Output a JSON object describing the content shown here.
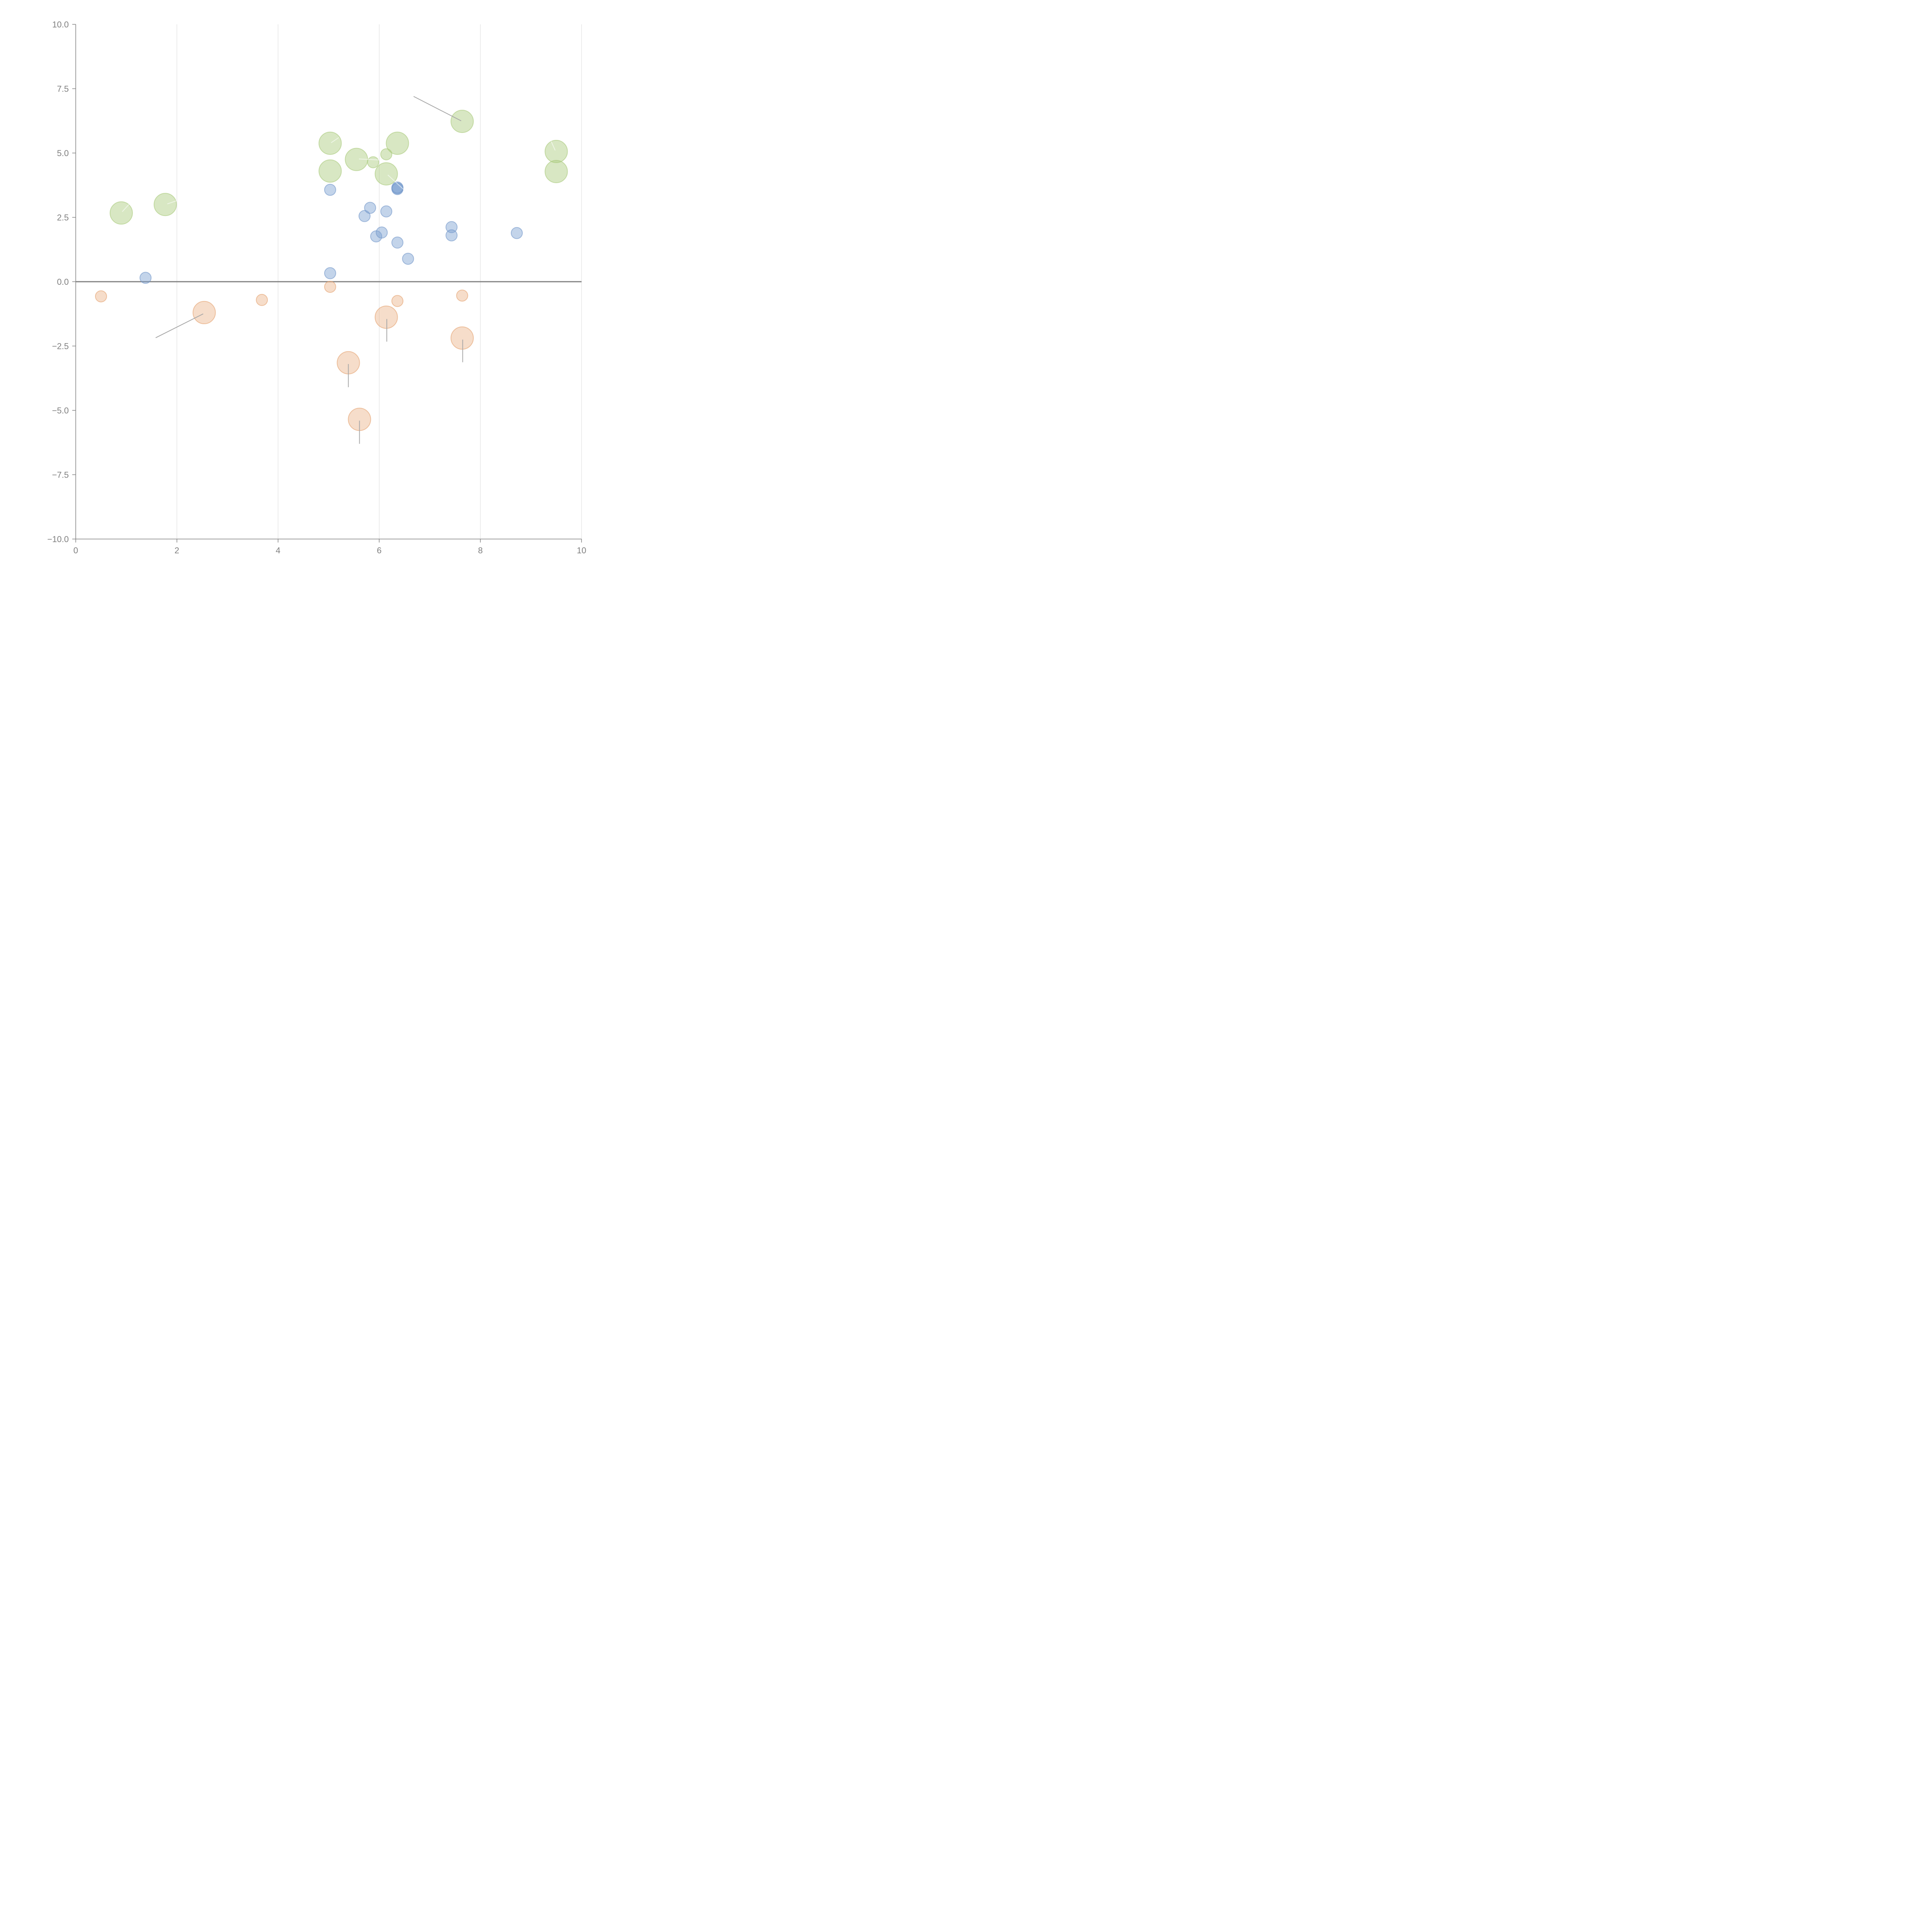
{
  "chart_data": {
    "type": "scatter",
    "title": "",
    "xlabel": "",
    "ylabel": "",
    "xlim": [
      0,
      10
    ],
    "ylim": [
      -10,
      10
    ],
    "x_ticks": [
      0,
      2,
      4,
      6,
      8,
      10
    ],
    "x_tick_labels": [
      "0",
      "2",
      "4",
      "6",
      "8",
      "10"
    ],
    "y_ticks": [
      10,
      7.5,
      5,
      2.5,
      0,
      -2.5,
      -5,
      -7.5,
      -10
    ],
    "y_tick_labels": [
      "10.0",
      "7.5",
      "5.0",
      "2.5",
      "0.0",
      "−2.5",
      "−5.0",
      "−7.5",
      "−10.0"
    ],
    "grid": "vertical",
    "zero_line": true,
    "legend": "none",
    "series": [
      {
        "name": "green",
        "color": "#a9c97a",
        "stroke": "#a9c97a",
        "points": [
          {
            "x": 0.9,
            "y": 2.67,
            "size": 2
          },
          {
            "x": 1.77,
            "y": 3.0,
            "size": 2
          },
          {
            "x": 5.03,
            "y": 5.38,
            "size": 2
          },
          {
            "x": 5.03,
            "y": 4.3,
            "size": 2
          },
          {
            "x": 5.55,
            "y": 4.75,
            "size": 2
          },
          {
            "x": 5.88,
            "y": 4.64,
            "size": 1
          },
          {
            "x": 6.14,
            "y": 4.95,
            "size": 1
          },
          {
            "x": 6.36,
            "y": 5.38,
            "size": 2
          },
          {
            "x": 6.14,
            "y": 4.19,
            "size": 2
          },
          {
            "x": 7.64,
            "y": 6.23,
            "size": 2
          },
          {
            "x": 9.5,
            "y": 5.06,
            "size": 2
          },
          {
            "x": 9.5,
            "y": 4.28,
            "size": 2
          }
        ]
      },
      {
        "name": "blue",
        "color": "#7ba0d0",
        "stroke": "#6f95c8",
        "points": [
          {
            "x": 1.38,
            "y": 0.15,
            "size": 1
          },
          {
            "x": 5.03,
            "y": 3.57,
            "size": 1
          },
          {
            "x": 5.03,
            "y": 0.33,
            "size": 1
          },
          {
            "x": 5.71,
            "y": 2.55,
            "size": 1
          },
          {
            "x": 5.82,
            "y": 2.87,
            "size": 1
          },
          {
            "x": 5.94,
            "y": 1.76,
            "size": 1
          },
          {
            "x": 6.05,
            "y": 1.91,
            "size": 1
          },
          {
            "x": 6.14,
            "y": 2.73,
            "size": 1
          },
          {
            "x": 6.36,
            "y": 3.63,
            "size": 1
          },
          {
            "x": 6.36,
            "y": 3.6,
            "size": 1
          },
          {
            "x": 6.36,
            "y": 3.66,
            "size": 1
          },
          {
            "x": 6.36,
            "y": 1.52,
            "size": 1
          },
          {
            "x": 6.57,
            "y": 0.89,
            "size": 1
          },
          {
            "x": 7.43,
            "y": 2.12,
            "size": 1
          },
          {
            "x": 7.43,
            "y": 1.8,
            "size": 1
          },
          {
            "x": 8.72,
            "y": 1.89,
            "size": 1
          }
        ]
      },
      {
        "name": "orange",
        "color": "#eab48a",
        "stroke": "#e5a06c",
        "points": [
          {
            "x": 0.5,
            "y": -0.57,
            "size": 1
          },
          {
            "x": 2.54,
            "y": -1.2,
            "size": 2
          },
          {
            "x": 3.68,
            "y": -0.71,
            "size": 1
          },
          {
            "x": 5.03,
            "y": -0.2,
            "size": 1
          },
          {
            "x": 5.39,
            "y": -3.15,
            "size": 2
          },
          {
            "x": 5.61,
            "y": -5.35,
            "size": 2
          },
          {
            "x": 6.14,
            "y": -1.38,
            "size": 2
          },
          {
            "x": 6.36,
            "y": -0.75,
            "size": 1
          },
          {
            "x": 7.64,
            "y": -0.54,
            "size": 1
          },
          {
            "x": 7.64,
            "y": -2.19,
            "size": 2
          }
        ]
      }
    ],
    "annotation_leaders": [
      {
        "from": [
          7.62,
          6.25
        ],
        "to": [
          6.68,
          7.2
        ],
        "style": "dark"
      },
      {
        "from": [
          2.52,
          -1.25
        ],
        "to": [
          1.58,
          -2.18
        ],
        "style": "dark"
      },
      {
        "from": [
          5.39,
          -3.2
        ],
        "to": [
          5.39,
          -4.1
        ],
        "style": "dark"
      },
      {
        "from": [
          5.61,
          -5.4
        ],
        "to": [
          5.61,
          -6.3
        ],
        "style": "dark"
      },
      {
        "from": [
          6.15,
          -1.45
        ],
        "to": [
          6.15,
          -2.33
        ],
        "style": "dark"
      },
      {
        "from": [
          7.65,
          -2.25
        ],
        "to": [
          7.65,
          -3.13
        ],
        "style": "dark"
      },
      {
        "from": [
          0.92,
          2.72
        ],
        "to": [
          1.05,
          3.0
        ],
        "style": "light"
      },
      {
        "from": [
          1.81,
          3.02
        ],
        "to": [
          2.0,
          3.15
        ],
        "style": "light"
      },
      {
        "from": [
          5.05,
          5.4
        ],
        "to": [
          5.2,
          5.6
        ],
        "style": "light"
      },
      {
        "from": [
          5.6,
          4.77
        ],
        "to": [
          6.0,
          4.73
        ],
        "style": "light"
      },
      {
        "from": [
          6.17,
          4.15
        ],
        "to": [
          6.5,
          3.55
        ],
        "style": "light"
      },
      {
        "from": [
          9.48,
          5.1
        ],
        "to": [
          9.4,
          5.45
        ],
        "style": "light"
      }
    ]
  }
}
